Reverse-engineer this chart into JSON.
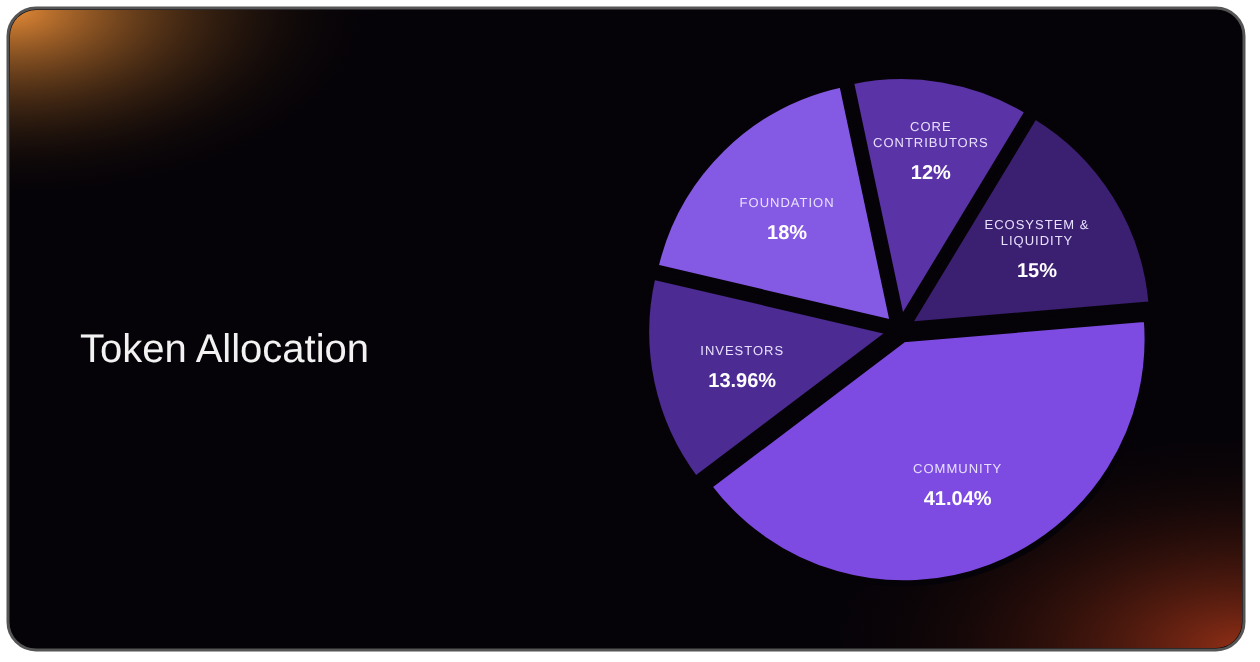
{
  "chart_data": {
    "type": "pie",
    "title": "Token Allocation",
    "categories": [
      "CORE CONTRIBUTORS",
      "ECOSYSTEM & LIQUIDITY",
      "COMMUNITY",
      "INVESTORS",
      "FOUNDATION"
    ],
    "values": [
      12,
      15,
      41.04,
      13.96,
      18
    ],
    "colors": [
      "#5a33a6",
      "#3b1f70",
      "#7d4ae2",
      "#4c2b92",
      "#8459e3"
    ],
    "value_labels": [
      "12%",
      "15%",
      "41.04%",
      "13.96%",
      "18%"
    ],
    "legend": false
  }
}
